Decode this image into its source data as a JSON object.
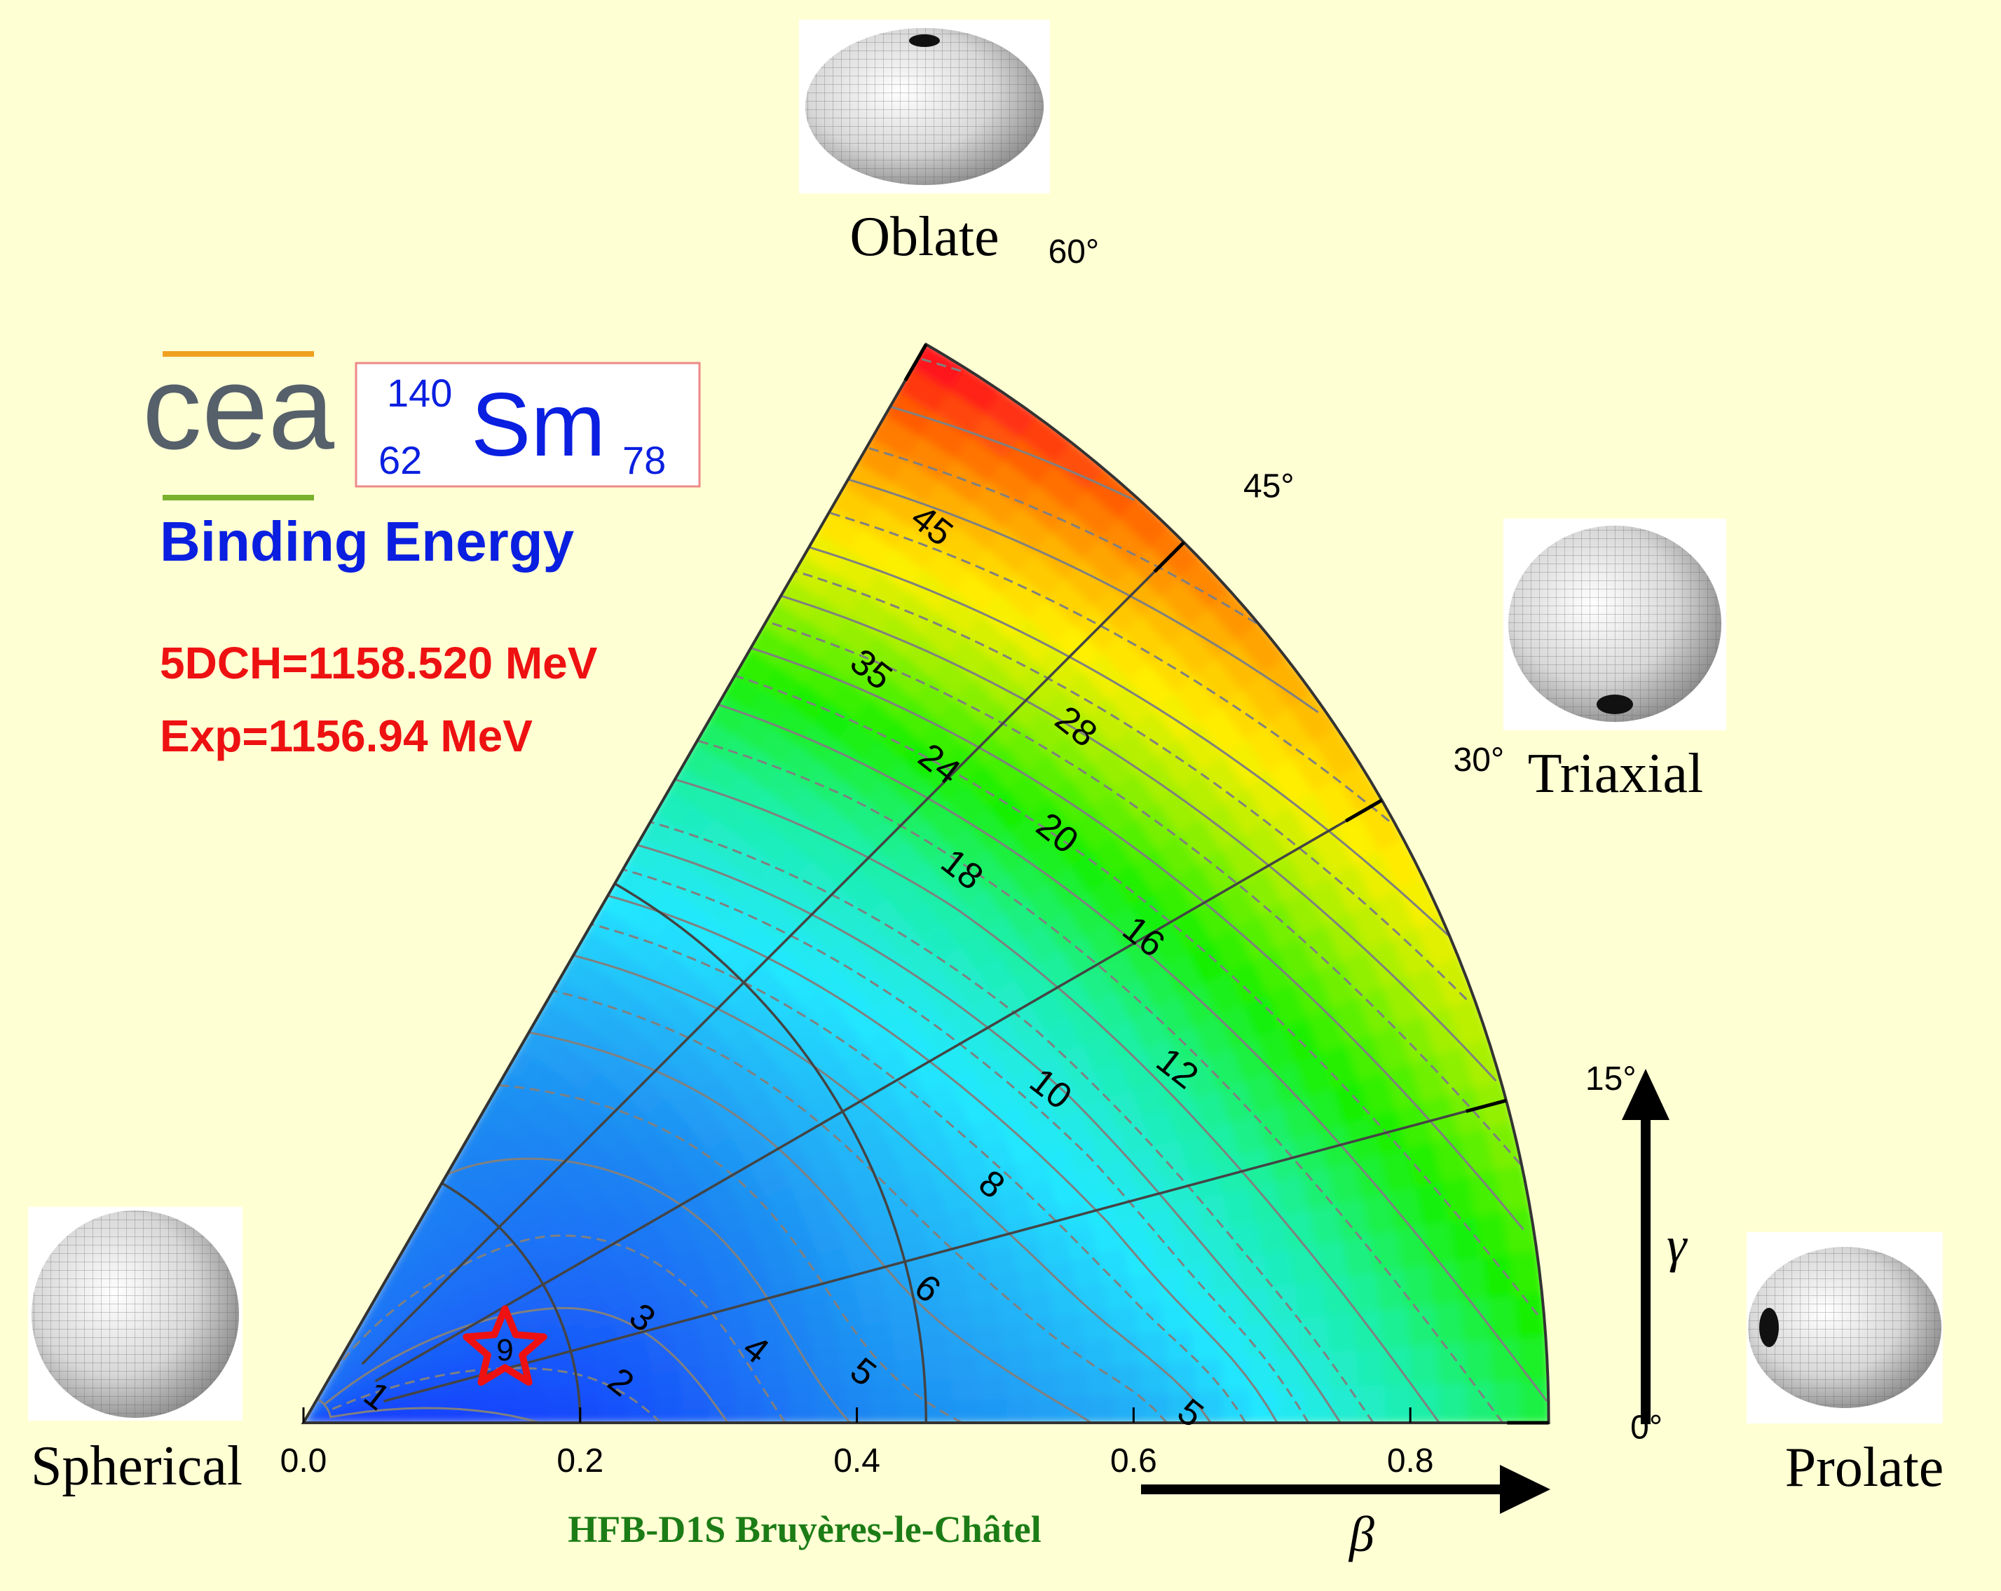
{
  "colors": {
    "background": "#ffffd4",
    "title_blue": "#0a1fe0",
    "energy_red": "#ee1111",
    "credit_green": "#1c7c16",
    "cea_orange": "#f0a020",
    "cea_green": "#79b12e",
    "cea_grey": "#55606a",
    "isotope_border": "#ee8888"
  },
  "logo": {
    "text": "cea"
  },
  "isotope": {
    "mass_number": "140",
    "atomic_number": "62",
    "symbol": "Sm",
    "neutron_number": "78"
  },
  "title": "Binding Energy",
  "energies": {
    "theory": "5DCH=1158.520 MeV",
    "experiment": "Exp=1156.94 MeV"
  },
  "shapes": {
    "oblate": "Oblate",
    "triaxial": "Triaxial",
    "spherical": "Spherical",
    "prolate": "Prolate"
  },
  "axes": {
    "beta_symbol": "β",
    "gamma_symbol": "γ"
  },
  "credit": "HFB-D1S Bruyères-le-Châtel",
  "chart_data": {
    "type": "heatmap",
    "coordinate_system": "polar (beta, gamma)",
    "x_axis": {
      "symbol": "β",
      "range": [
        0.0,
        0.9
      ],
      "ticks": [
        0.0,
        0.2,
        0.4,
        0.6,
        0.8
      ],
      "tick_labels": [
        "0.0",
        "0.2",
        "0.4",
        "0.6",
        "0.8"
      ]
    },
    "angle_axis": {
      "symbol": "γ",
      "range_deg": [
        0,
        60
      ],
      "ticks_deg": [
        0,
        15,
        30,
        45,
        60
      ]
    },
    "grid_arcs_beta": [
      0.2,
      0.45
    ],
    "colorscale": [
      "#1437ff",
      "#1f8af2",
      "#22e8ff",
      "#1ef0a0",
      "#19f000",
      "#9cf000",
      "#fff000",
      "#ffb400",
      "#ff6a00",
      "#ff1a1a",
      "#ff0a30"
    ],
    "energy_range_MeV": [
      0,
      55
    ],
    "contour_labels": [
      {
        "label": "1",
        "beta": 0.055,
        "gamma_deg": 19
      },
      {
        "label": "2",
        "beta": 0.23,
        "gamma_deg": 7
      },
      {
        "label": "3",
        "beta": 0.255,
        "gamma_deg": 17
      },
      {
        "label": "4",
        "beta": 0.33,
        "gamma_deg": 9
      },
      {
        "label": "5",
        "beta": 0.405,
        "gamma_deg": 5
      },
      {
        "label": "6",
        "beta": 0.46,
        "gamma_deg": 12
      },
      {
        "label": "5",
        "beta": 0.64,
        "gamma_deg": 0.5
      },
      {
        "label": "8",
        "beta": 0.525,
        "gamma_deg": 19
      },
      {
        "label": "10",
        "beta": 0.59,
        "gamma_deg": 24
      },
      {
        "label": "12",
        "beta": 0.68,
        "gamma_deg": 22
      },
      {
        "label": "16",
        "beta": 0.7,
        "gamma_deg": 30
      },
      {
        "label": "20",
        "beta": 0.69,
        "gamma_deg": 38
      },
      {
        "label": "18",
        "beta": 0.62,
        "gamma_deg": 40
      },
      {
        "label": "24",
        "beta": 0.66,
        "gamma_deg": 46
      },
      {
        "label": "28",
        "beta": 0.75,
        "gamma_deg": 42
      },
      {
        "label": "35",
        "beta": 0.68,
        "gamma_deg": 53
      },
      {
        "label": "45",
        "beta": 0.79,
        "gamma_deg": 55
      }
    ],
    "minimum_marker": {
      "symbol": "star",
      "beta": 0.155,
      "gamma_deg": 20,
      "label": "9"
    }
  }
}
